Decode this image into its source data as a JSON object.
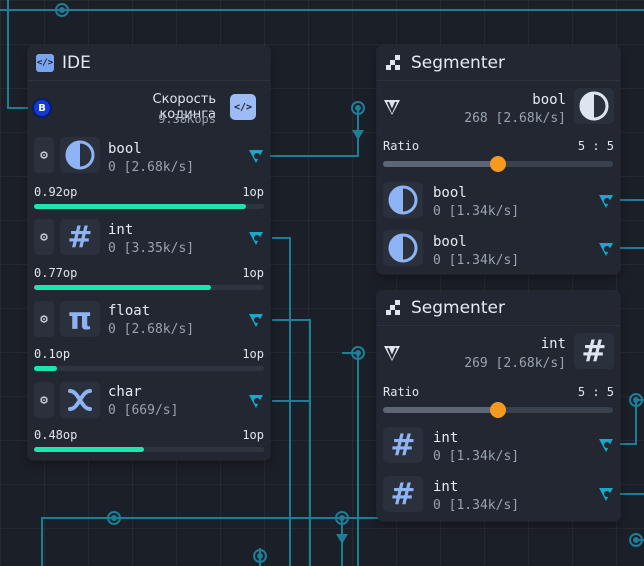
{
  "ide": {
    "title": "IDE",
    "header_icon": "code-icon",
    "speed_label": "Скорость кодинга",
    "speed_value": "9.38Kops",
    "badge_letter": "B",
    "code_button_icon": "code-icon",
    "rows": [
      {
        "name": "bool",
        "rate": "0 [2.68k/s]",
        "icon": "half-circle-icon",
        "left_value": "0.92op",
        "right_value": "1op",
        "fill": 0.92
      },
      {
        "name": "int",
        "rate": "0 [3.35k/s]",
        "icon": "hash-icon",
        "left_value": "0.77op",
        "right_value": "1op",
        "fill": 0.77
      },
      {
        "name": "float",
        "rate": "0 [2.68k/s]",
        "icon": "pi-icon",
        "left_value": "0.1op",
        "right_value": "1op",
        "fill": 0.1
      },
      {
        "name": "char",
        "rate": "0 [669/s]",
        "icon": "shuffle-icon",
        "left_value": "0.48op",
        "right_value": "1op",
        "fill": 0.48
      }
    ]
  },
  "segmenter1": {
    "title": "Segmenter",
    "input_name": "bool",
    "input_rate": "268 [2.68k/s]",
    "ratio_label": "Ratio",
    "ratio_value": "5 : 5",
    "ratio_fraction": 0.5,
    "outputs": [
      {
        "name": "bool",
        "rate": "0 [1.34k/s]"
      },
      {
        "name": "bool",
        "rate": "0 [1.34k/s]"
      }
    ]
  },
  "segmenter2": {
    "title": "Segmenter",
    "input_name": "int",
    "input_rate": "269 [2.68k/s]",
    "ratio_label": "Ratio",
    "ratio_value": "5 : 5",
    "ratio_fraction": 0.5,
    "outputs": [
      {
        "name": "int",
        "rate": "0 [1.34k/s]"
      },
      {
        "name": "int",
        "rate": "0 [1.34k/s]"
      }
    ]
  },
  "colors": {
    "wire": "#1e7e98",
    "progress": "#1be6b0",
    "slider_knob": "#f59a1e",
    "type_icon": "#8fb4f4",
    "port": "#18a8c8"
  }
}
